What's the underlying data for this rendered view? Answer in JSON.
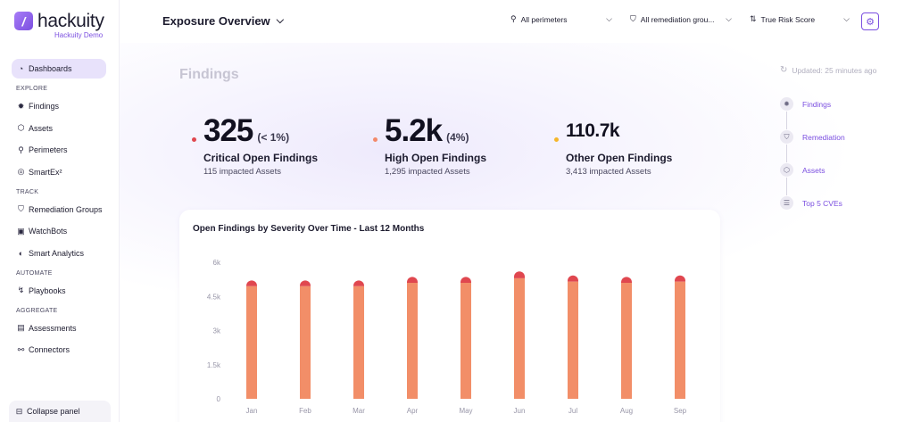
{
  "app": {
    "name": "hackuity",
    "subtitle": "Hackuity Demo",
    "logo_letter": "/"
  },
  "sidebar": {
    "dashboards": "Dashboards",
    "sections": [
      {
        "title": "EXPLORE",
        "items": [
          {
            "label": "Findings",
            "icon": "bug-icon",
            "glyph": "✹"
          },
          {
            "label": "Assets",
            "icon": "cube-icon",
            "glyph": "⬡"
          },
          {
            "label": "Perimeters",
            "icon": "network-icon",
            "glyph": "⚲"
          },
          {
            "label": "SmartEx²",
            "icon": "database-icon",
            "glyph": "◎"
          }
        ]
      },
      {
        "title": "TRACK",
        "items": [
          {
            "label": "Remediation Groups",
            "icon": "shield-icon",
            "glyph": "⛉"
          },
          {
            "label": "WatchBots",
            "icon": "robot-icon",
            "glyph": "▣"
          },
          {
            "label": "Smart Analytics",
            "icon": "analytics-icon",
            "glyph": "◐"
          }
        ]
      },
      {
        "title": "AUTOMATE",
        "items": [
          {
            "label": "Playbooks",
            "icon": "playbook-icon",
            "glyph": "↯"
          }
        ]
      },
      {
        "title": "AGGREGATE",
        "items": [
          {
            "label": "Assessments",
            "icon": "list-icon",
            "glyph": "▤"
          },
          {
            "label": "Connectors",
            "icon": "link-icon",
            "glyph": "⚯"
          }
        ]
      }
    ],
    "collapse_label": "Collapse panel"
  },
  "header": {
    "title": "Exposure Overview",
    "filters": {
      "perimeters": "All perimeters",
      "remediation": "All remediation grou...",
      "score": "True Risk Score"
    }
  },
  "findings": {
    "section_title": "Findings",
    "updated": "Updated: 25 minutes ago",
    "kpis": [
      {
        "value": "325",
        "pct": "(< 1%)",
        "label": "Critical Open Findings",
        "sub": "115 impacted Assets",
        "color": "#e0474f"
      },
      {
        "value": "5.2k",
        "pct": "(4%)",
        "label": "High Open Findings",
        "sub": "1,295 impacted Assets",
        "color": "#f3896a"
      },
      {
        "value": "110.7k",
        "pct": "",
        "label": "Other Open Findings",
        "sub": "3,413 impacted Assets",
        "color": "#f5b62a"
      }
    ]
  },
  "stepper": [
    {
      "label": "Findings",
      "icon": "bug-icon",
      "glyph": "✹"
    },
    {
      "label": "Remediation",
      "icon": "shield-icon",
      "glyph": "⛉"
    },
    {
      "label": "Assets",
      "icon": "cube-icon",
      "glyph": "⬡"
    },
    {
      "label": "Top 5 CVEs",
      "icon": "database-icon",
      "glyph": "☰"
    }
  ],
  "chart_data": {
    "type": "bar",
    "title": "Open Findings by Severity Over Time - Last 12 Months",
    "categories": [
      "Jan",
      "Feb",
      "Mar",
      "Apr",
      "May",
      "Jun",
      "Jul",
      "Aug",
      "Sep"
    ],
    "series": [
      {
        "values": [
          4950,
          4950,
          4950,
          5100,
          5100,
          5300,
          5150,
          5100,
          5150
        ],
        "color": "#f28e68"
      },
      {
        "values": [
          250,
          250,
          250,
          260,
          260,
          300,
          270,
          260,
          270
        ],
        "color": "#e0474f"
      }
    ],
    "ylim": [
      0,
      6000
    ],
    "yticks": [
      "0",
      "1.5k",
      "3k",
      "4.5k",
      "6k"
    ],
    "stacked": true,
    "grid": false
  }
}
